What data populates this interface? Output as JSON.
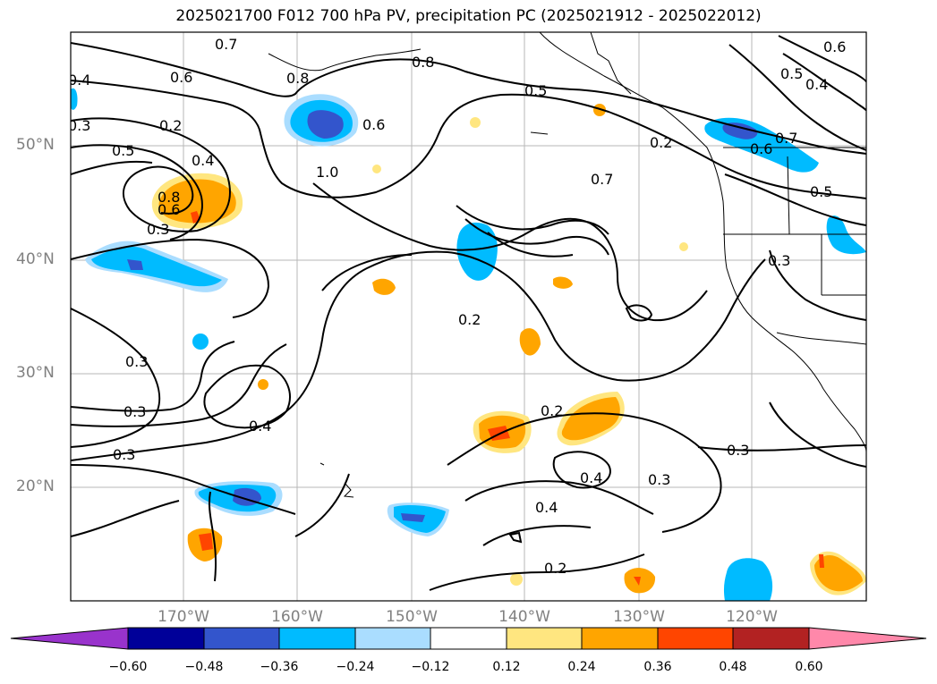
{
  "title": "2025021700 F012 700 hPa PV, precipitation PC (2025021912 - 2025022012)",
  "lat_labels": [
    "50°N",
    "40°N",
    "30°N",
    "20°N"
  ],
  "lon_labels": [
    "170°W",
    "160°W",
    "150°W",
    "140°W",
    "130°W",
    "120°W"
  ],
  "colorbar": {
    "ticks": [
      "−0.60",
      "−0.48",
      "−0.36",
      "−0.24",
      "−0.12",
      "0.12",
      "0.24",
      "0.36",
      "0.48",
      "0.60"
    ],
    "colors": [
      "#9933cc",
      "#000099",
      "#3355cc",
      "#00bbff",
      "#aaddff",
      "#ffffff",
      "#ffe680",
      "#ffa500",
      "#ff4500",
      "#b22222",
      "#ff88aa"
    ]
  },
  "contour_labels": [
    "0.7",
    "0.6",
    "0.4",
    "0.3",
    "0.2",
    "0.5",
    "0.4",
    "0.8",
    "0.6",
    "0.3",
    "0.8",
    "0.6",
    "1.0",
    "0.8",
    "0.5",
    "0.7",
    "0.2",
    "0.6",
    "0.7",
    "0.5",
    "0.2",
    "0.3",
    "0.3",
    "0.4",
    "0.3",
    "0.2",
    "0.4",
    "0.3",
    "0.3",
    "0.4",
    "0.2",
    "0.6",
    "0.5",
    "0.3",
    "0.4"
  ]
}
